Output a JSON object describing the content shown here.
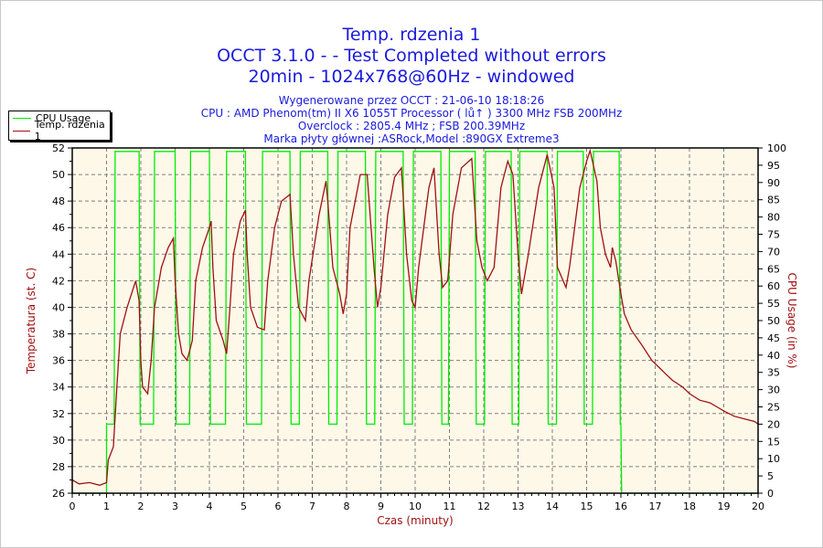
{
  "header": {
    "title_lines": [
      "Temp. rdzenia 1",
      "OCCT 3.1.0 -  - Test Completed without errors",
      "20min - 1024x768@60Hz - windowed"
    ],
    "info_lines": [
      "Wygenerowane przez OCCT : 21-06-10 18:18:26",
      "CPU : AMD Phenom(tm) II X6 1055T Processor (    lů↑ ) 3300 MHz FSB 200MHz",
      "Overclock : 2805.4 MHz ; FSB 200.39MHz",
      "Marka płyty głównej :ASRock,Model :890GX Extreme3"
    ]
  },
  "chart_data": {
    "type": "line",
    "xlabel": "Czas (minuty)",
    "ylabel": "Temperatura (st. C)",
    "y2label": "CPU Usage (in %)",
    "xlim": [
      0,
      20
    ],
    "ylim": [
      26,
      52
    ],
    "y2lim": [
      0,
      100
    ],
    "xticks": [
      0,
      1,
      2,
      3,
      4,
      5,
      6,
      7,
      8,
      9,
      10,
      11,
      12,
      13,
      14,
      15,
      16,
      17,
      18,
      19,
      20
    ],
    "yticks": [
      26,
      28,
      30,
      32,
      34,
      36,
      38,
      40,
      42,
      44,
      46,
      48,
      50,
      52
    ],
    "y2ticks": [
      0,
      5,
      10,
      15,
      20,
      25,
      30,
      35,
      40,
      45,
      50,
      55,
      60,
      65,
      70,
      75,
      80,
      85,
      90,
      95,
      100
    ],
    "grid": true,
    "legend_position": "top-left, outside",
    "colors": {
      "background": "#fdf8e8",
      "cpu": "#00ee00",
      "temp": "#a01010",
      "text": "#1a1adc",
      "axis_label": "#a01010"
    },
    "series": [
      {
        "name": "CPU Usage",
        "axis": "right",
        "points": [
          [
            0,
            0
          ],
          [
            1.0,
            0
          ],
          [
            1.0,
            20
          ],
          [
            1.22,
            20
          ],
          [
            1.25,
            99
          ],
          [
            1.95,
            99
          ],
          [
            1.98,
            20
          ],
          [
            2.37,
            20
          ],
          [
            2.4,
            99
          ],
          [
            3.0,
            99
          ],
          [
            3.03,
            20
          ],
          [
            3.42,
            20
          ],
          [
            3.45,
            99
          ],
          [
            4.0,
            99
          ],
          [
            4.03,
            20
          ],
          [
            4.47,
            20
          ],
          [
            4.5,
            99
          ],
          [
            5.05,
            99
          ],
          [
            5.08,
            20
          ],
          [
            5.52,
            20
          ],
          [
            5.55,
            99
          ],
          [
            6.35,
            99
          ],
          [
            6.38,
            20
          ],
          [
            6.62,
            20
          ],
          [
            6.65,
            99
          ],
          [
            7.45,
            99
          ],
          [
            7.48,
            20
          ],
          [
            7.72,
            20
          ],
          [
            7.75,
            99
          ],
          [
            8.55,
            99
          ],
          [
            8.58,
            20
          ],
          [
            8.82,
            20
          ],
          [
            8.85,
            99
          ],
          [
            9.65,
            99
          ],
          [
            9.68,
            20
          ],
          [
            9.92,
            20
          ],
          [
            9.95,
            99
          ],
          [
            10.75,
            99
          ],
          [
            10.78,
            20
          ],
          [
            10.97,
            20
          ],
          [
            11.0,
            99
          ],
          [
            11.75,
            99
          ],
          [
            11.78,
            20
          ],
          [
            12.02,
            20
          ],
          [
            12.05,
            99
          ],
          [
            12.8,
            99
          ],
          [
            12.83,
            20
          ],
          [
            13.02,
            20
          ],
          [
            13.05,
            99
          ],
          [
            13.85,
            99
          ],
          [
            13.88,
            20
          ],
          [
            14.12,
            20
          ],
          [
            14.15,
            99
          ],
          [
            14.9,
            99
          ],
          [
            14.93,
            20
          ],
          [
            15.17,
            20
          ],
          [
            15.2,
            99
          ],
          [
            15.95,
            99
          ],
          [
            15.98,
            20
          ],
          [
            16.0,
            20
          ],
          [
            16.02,
            0
          ],
          [
            20,
            0
          ]
        ]
      },
      {
        "name": "Temp. rdzenia 1",
        "axis": "left",
        "points": [
          [
            0,
            27
          ],
          [
            0.2,
            26.7
          ],
          [
            0.5,
            26.8
          ],
          [
            0.8,
            26.6
          ],
          [
            1.0,
            26.8
          ],
          [
            1.05,
            28.5
          ],
          [
            1.2,
            29.5
          ],
          [
            1.3,
            34
          ],
          [
            1.4,
            38
          ],
          [
            1.6,
            40
          ],
          [
            1.85,
            42
          ],
          [
            1.95,
            40.5
          ],
          [
            2.0,
            36
          ],
          [
            2.05,
            34
          ],
          [
            2.2,
            33.5
          ],
          [
            2.3,
            36
          ],
          [
            2.4,
            40
          ],
          [
            2.6,
            43
          ],
          [
            2.8,
            44.5
          ],
          [
            2.95,
            45.2
          ],
          [
            3.0,
            42
          ],
          [
            3.1,
            38
          ],
          [
            3.2,
            36.5
          ],
          [
            3.35,
            36
          ],
          [
            3.5,
            37.5
          ],
          [
            3.6,
            42
          ],
          [
            3.8,
            44.5
          ],
          [
            4.0,
            46
          ],
          [
            4.05,
            46.5
          ],
          [
            4.1,
            43
          ],
          [
            4.2,
            39
          ],
          [
            4.4,
            37.5
          ],
          [
            4.5,
            36.5
          ],
          [
            4.6,
            40
          ],
          [
            4.7,
            44
          ],
          [
            4.9,
            46.5
          ],
          [
            5.05,
            47.3
          ],
          [
            5.1,
            44
          ],
          [
            5.2,
            40
          ],
          [
            5.4,
            38.5
          ],
          [
            5.6,
            38.3
          ],
          [
            5.7,
            42
          ],
          [
            5.9,
            46
          ],
          [
            6.1,
            48
          ],
          [
            6.35,
            48.5
          ],
          [
            6.45,
            44
          ],
          [
            6.6,
            40
          ],
          [
            6.8,
            39
          ],
          [
            6.9,
            42
          ],
          [
            7.2,
            47
          ],
          [
            7.4,
            49.5
          ],
          [
            7.45,
            48
          ],
          [
            7.6,
            43
          ],
          [
            7.8,
            41
          ],
          [
            7.9,
            39.5
          ],
          [
            8.0,
            41
          ],
          [
            8.1,
            46
          ],
          [
            8.4,
            50
          ],
          [
            8.6,
            50
          ],
          [
            8.8,
            43
          ],
          [
            8.9,
            40
          ],
          [
            9.0,
            41.5
          ],
          [
            9.2,
            47
          ],
          [
            9.4,
            49.8
          ],
          [
            9.6,
            50.5
          ],
          [
            9.75,
            44
          ],
          [
            9.9,
            40.5
          ],
          [
            10.0,
            40
          ],
          [
            10.1,
            43
          ],
          [
            10.4,
            49
          ],
          [
            10.55,
            50.5
          ],
          [
            10.7,
            44
          ],
          [
            10.8,
            41.5
          ],
          [
            10.95,
            42
          ],
          [
            11.1,
            47
          ],
          [
            11.35,
            50.5
          ],
          [
            11.65,
            51.2
          ],
          [
            11.8,
            45
          ],
          [
            11.95,
            43
          ],
          [
            12.1,
            42
          ],
          [
            12.3,
            43
          ],
          [
            12.5,
            49
          ],
          [
            12.7,
            51
          ],
          [
            12.85,
            50
          ],
          [
            13.0,
            44
          ],
          [
            13.1,
            41
          ],
          [
            13.3,
            44
          ],
          [
            13.6,
            49
          ],
          [
            13.85,
            51.5
          ],
          [
            14.05,
            49
          ],
          [
            14.15,
            43
          ],
          [
            14.4,
            41.5
          ],
          [
            14.5,
            43
          ],
          [
            14.8,
            49
          ],
          [
            15.0,
            51
          ],
          [
            15.1,
            51.8
          ],
          [
            15.3,
            49.5
          ],
          [
            15.4,
            46
          ],
          [
            15.55,
            44
          ],
          [
            15.7,
            43
          ],
          [
            15.75,
            44.5
          ],
          [
            15.85,
            43.5
          ],
          [
            16.0,
            41
          ],
          [
            16.1,
            39.5
          ],
          [
            16.3,
            38.3
          ],
          [
            16.6,
            37.2
          ],
          [
            16.9,
            36
          ],
          [
            17.1,
            35.5
          ],
          [
            17.3,
            35
          ],
          [
            17.5,
            34.5
          ],
          [
            17.8,
            34
          ],
          [
            18.0,
            33.5
          ],
          [
            18.3,
            33
          ],
          [
            18.6,
            32.8
          ],
          [
            18.8,
            32.5
          ],
          [
            19.0,
            32.2
          ],
          [
            19.3,
            31.8
          ],
          [
            19.6,
            31.6
          ],
          [
            19.9,
            31.4
          ],
          [
            20,
            31.2
          ]
        ]
      }
    ]
  }
}
